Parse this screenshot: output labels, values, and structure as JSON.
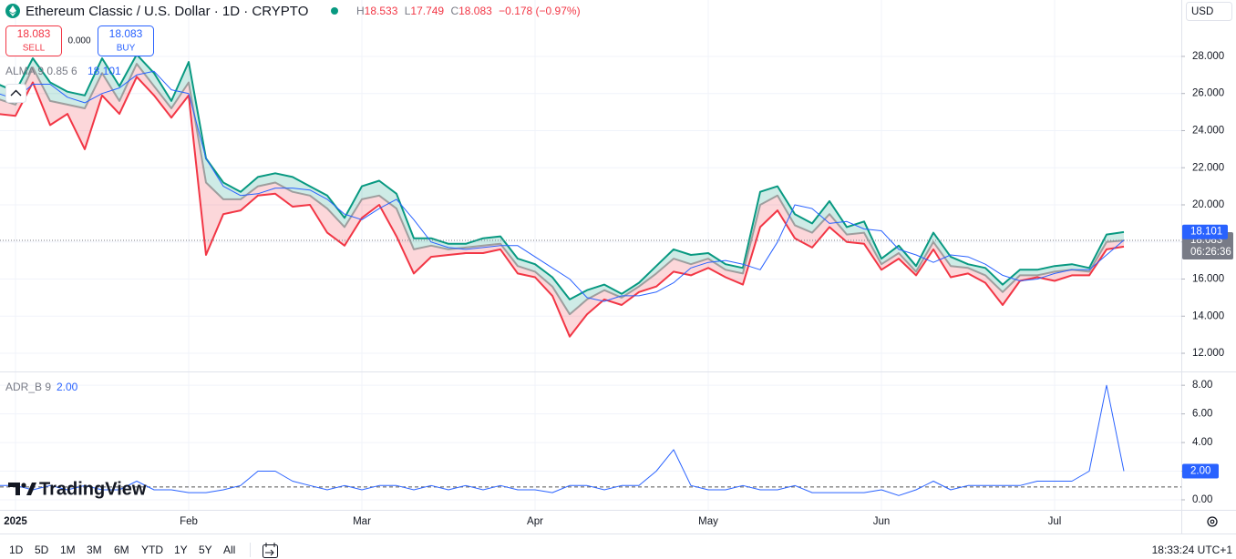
{
  "header": {
    "symbol": "Ethereum Classic / U.S. Dollar · 1D · CRYPTO",
    "high_label": "H",
    "high": "18.533",
    "low_label": "L",
    "low": "17.749",
    "close_label": "C",
    "close": "18.083",
    "change": "−0.178 (−0.97%)"
  },
  "trade": {
    "sell_price": "18.083",
    "sell": "SELL",
    "spread": "0.000",
    "buy_price": "18.083",
    "buy": "BUY"
  },
  "currency": "USD",
  "countdown": "06:26:36",
  "logo": "TradingView",
  "timeframes": [
    "1D",
    "5D",
    "1M",
    "3M",
    "6M",
    "YTD",
    "1Y",
    "5Y",
    "All"
  ],
  "clock": "18:33:24 UTC+1",
  "chart_data": [
    {
      "type": "line",
      "categories": [
        null,
        "2025",
        null,
        null,
        null,
        null,
        null,
        null,
        null,
        null,
        null,
        "Feb",
        null,
        null,
        null,
        null,
        null,
        null,
        null,
        null,
        null,
        "Mar",
        null,
        null,
        null,
        null,
        null,
        null,
        null,
        null,
        null,
        "Apr",
        null,
        null,
        null,
        null,
        null,
        null,
        null,
        null,
        null,
        "May",
        null,
        null,
        null,
        null,
        null,
        null,
        null,
        null,
        null,
        "Jun",
        null,
        null,
        null,
        null,
        null,
        null,
        null,
        null,
        null,
        "Jul",
        null,
        null,
        null,
        null
      ],
      "series": [
        {
          "color": "#089981",
          "values": [
            26.5,
            26.1,
            27.9,
            26.6,
            26.1,
            25.9,
            27.9,
            26.4,
            28.1,
            27.1,
            25.6,
            27.7,
            22.5,
            21.2,
            20.7,
            21.5,
            21.7,
            21.5,
            21.0,
            20.5,
            19.3,
            21.0,
            21.3,
            20.6,
            18.2,
            18.2,
            17.9,
            17.9,
            18.2,
            18.3,
            17.1,
            16.8,
            16.1,
            14.9,
            15.4,
            15.7,
            15.2,
            15.8,
            16.7,
            17.6,
            17.3,
            17.4,
            16.8,
            16.6,
            20.7,
            21.0,
            19.5,
            19.0,
            20.2,
            18.8,
            19.1,
            17.1,
            17.8,
            16.7,
            18.5,
            17.2,
            16.8,
            16.6,
            15.7,
            16.5,
            16.5,
            16.7,
            16.8,
            16.6,
            18.4,
            18.533
          ]
        },
        {
          "color": "#9e9e9e",
          "values": [
            25.7,
            25.4,
            27.4,
            25.6,
            25.4,
            25.2,
            27.1,
            25.6,
            27.6,
            26.4,
            25.2,
            26.6,
            21.2,
            20.3,
            20.3,
            21.0,
            21.2,
            20.7,
            20.5,
            19.8,
            18.8,
            20.3,
            20.5,
            19.8,
            17.6,
            17.8,
            17.6,
            17.7,
            17.8,
            17.9,
            16.7,
            16.4,
            15.6,
            14.1,
            14.9,
            15.4,
            15.0,
            15.6,
            16.3,
            17.1,
            16.8,
            17.1,
            16.5,
            16.3,
            20.0,
            20.5,
            18.9,
            18.5,
            19.5,
            18.4,
            18.5,
            16.8,
            17.4,
            16.4,
            18.0,
            16.7,
            16.6,
            16.2,
            15.3,
            16.2,
            16.2,
            16.4,
            16.5,
            16.4,
            18.0,
            18.083
          ]
        },
        {
          "color": "#f23645",
          "values": [
            24.9,
            24.8,
            26.6,
            24.3,
            24.9,
            23.0,
            25.9,
            24.9,
            26.9,
            25.9,
            24.7,
            25.9,
            17.3,
            19.5,
            19.7,
            20.5,
            20.6,
            19.9,
            20.0,
            18.5,
            17.8,
            19.3,
            20.0,
            18.3,
            16.3,
            17.2,
            17.3,
            17.4,
            17.4,
            17.6,
            16.3,
            16.1,
            15.1,
            12.9,
            14.1,
            14.9,
            14.6,
            15.3,
            15.6,
            16.4,
            16.2,
            16.6,
            16.1,
            15.7,
            18.8,
            19.7,
            18.2,
            17.7,
            18.8,
            18.0,
            17.9,
            16.5,
            17.1,
            16.2,
            17.6,
            16.1,
            16.3,
            15.8,
            14.6,
            15.9,
            16.1,
            15.9,
            16.2,
            16.2,
            17.6,
            17.749
          ]
        },
        {
          "name": "ALMA 9 0.85 6",
          "color": "#2962ff",
          "values": [
            26.0,
            25.7,
            26.5,
            26.5,
            25.8,
            25.5,
            26.0,
            26.3,
            27.0,
            27.2,
            26.2,
            26.0,
            22.5,
            21.0,
            20.5,
            20.6,
            20.9,
            20.9,
            20.8,
            20.3,
            19.5,
            19.2,
            19.8,
            20.3,
            19.2,
            18.0,
            17.7,
            17.6,
            17.7,
            17.8,
            17.8,
            17.2,
            16.6,
            16.0,
            15.0,
            14.8,
            15.1,
            15.1,
            15.3,
            15.8,
            16.6,
            16.9,
            17.0,
            16.8,
            16.5,
            18.0,
            20.0,
            19.8,
            19.0,
            19.1,
            18.7,
            18.6,
            17.6,
            17.3,
            16.9,
            17.3,
            17.2,
            16.8,
            16.2,
            15.9,
            16.0,
            16.3,
            16.5,
            16.5,
            17.3,
            18.101
          ]
        }
      ],
      "ylim": [
        11.02,
        31.04
      ],
      "yticks": [
        {
          "value": 12,
          "label": "12.000"
        },
        {
          "value": 14,
          "label": "14.000"
        },
        {
          "value": 16,
          "label": "16.000"
        },
        {
          "value": 18,
          "label": "18.000"
        },
        {
          "value": 20,
          "label": "20.000"
        },
        {
          "value": 22,
          "label": "22.000"
        },
        {
          "value": 24,
          "label": "24.000"
        },
        {
          "value": 26,
          "label": "26.000"
        },
        {
          "value": 28,
          "label": "28.000"
        }
      ],
      "grid": true
    },
    {
      "type": "line",
      "series": [
        {
          "name": "ADR_B 9",
          "color": "#2962ff",
          "values": [
            1.0,
            1.0,
            0.7,
            1.0,
            0.7,
            1.0,
            0.7,
            0.7,
            1.3,
            0.7,
            0.7,
            0.5,
            0.5,
            0.7,
            1.0,
            2.0,
            2.0,
            1.3,
            1.0,
            0.7,
            1.0,
            0.7,
            1.0,
            1.0,
            0.7,
            1.0,
            0.7,
            1.0,
            0.7,
            1.0,
            0.7,
            0.7,
            0.5,
            1.0,
            1.0,
            0.7,
            1.0,
            1.0,
            2.0,
            3.5,
            1.0,
            0.7,
            0.7,
            1.0,
            0.7,
            0.7,
            1.0,
            0.5,
            0.5,
            0.5,
            0.5,
            0.7,
            0.3,
            0.7,
            1.3,
            0.7,
            1.0,
            1.0,
            1.0,
            1.0,
            1.3,
            1.3,
            1.3,
            2.0,
            8.0,
            2.0
          ],
          "value_labels": {
            "65": "2.00"
          }
        }
      ],
      "ylim": [
        -0.7,
        8.9
      ],
      "yticks": [
        {
          "value": 0,
          "label": "0.00"
        },
        {
          "value": 2,
          "label": "2.00"
        },
        {
          "value": 4,
          "label": "4.00"
        },
        {
          "value": 6,
          "label": "6.00"
        },
        {
          "value": 8,
          "label": "8.00"
        }
      ],
      "reference_line": 0.9,
      "grid": true
    }
  ]
}
